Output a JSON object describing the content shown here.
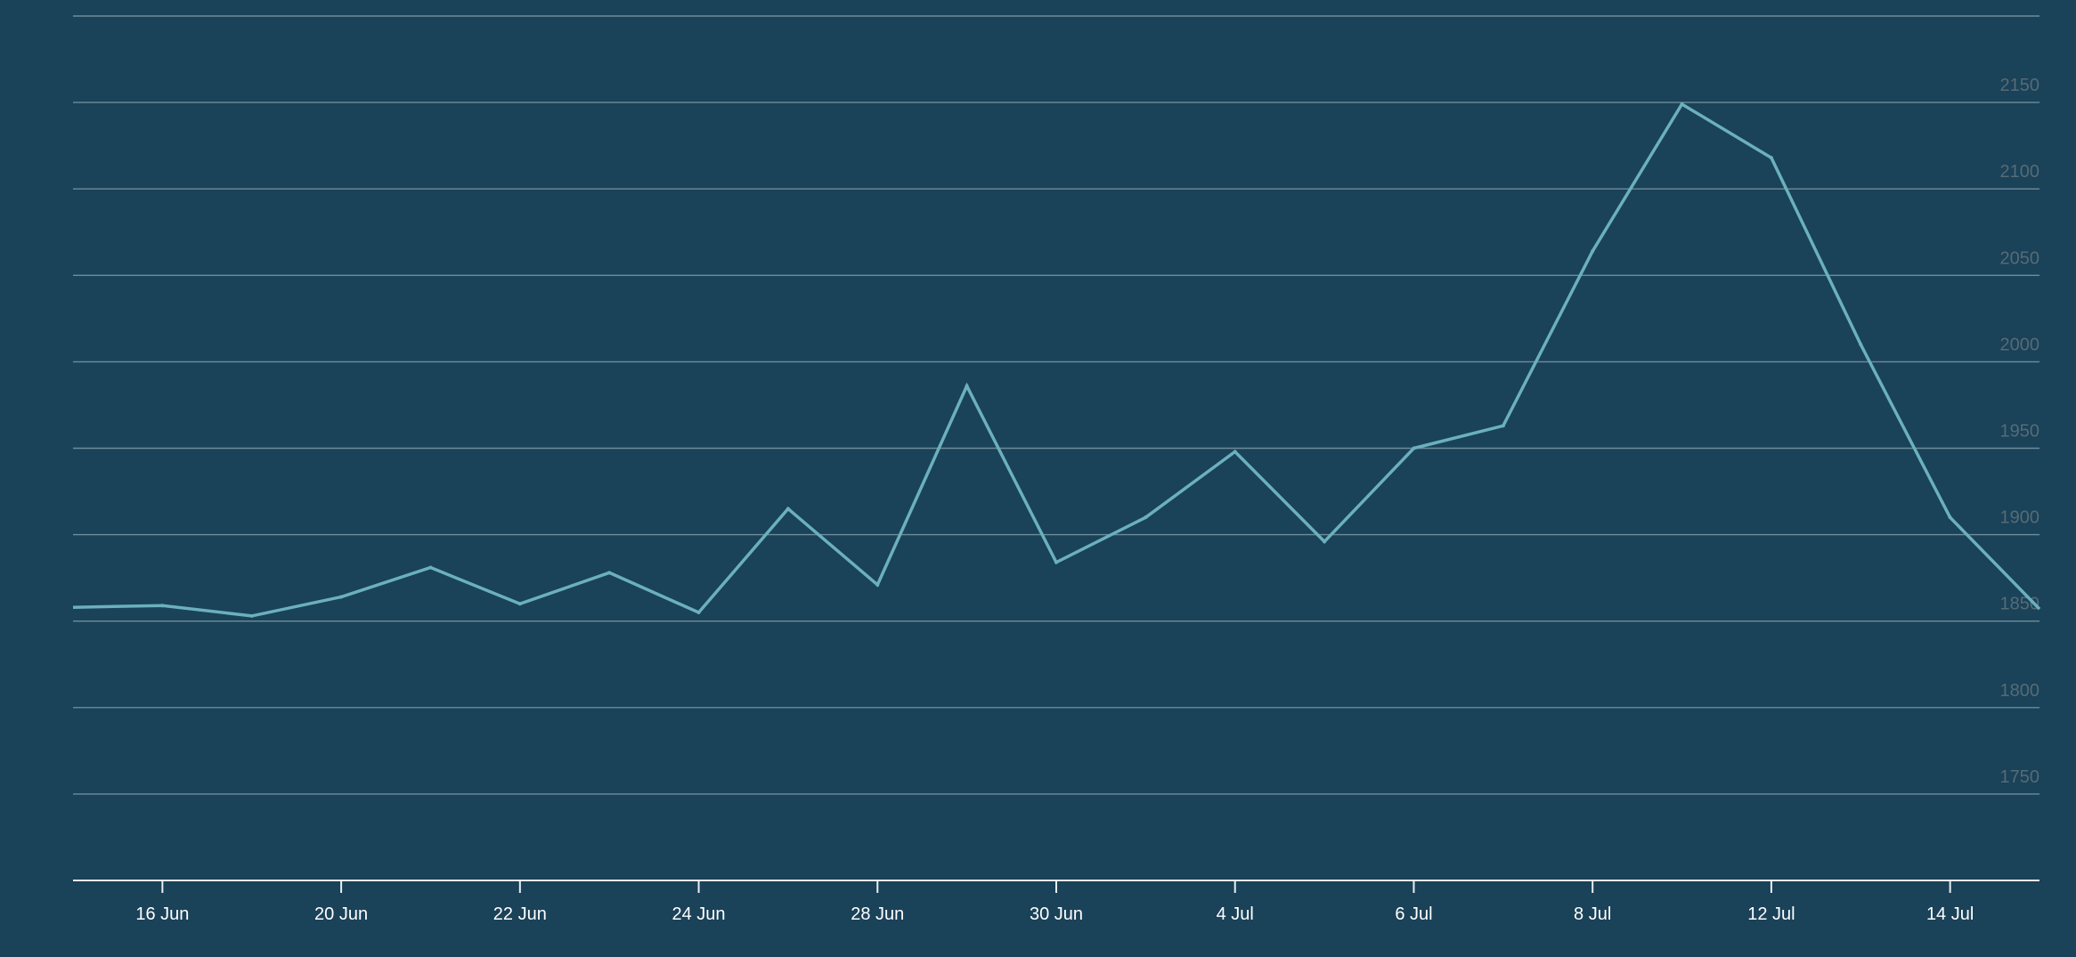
{
  "chart_data": {
    "type": "line",
    "title": "",
    "xlabel": "",
    "ylabel": "",
    "ylim": [
      1700,
      2200
    ],
    "yticks": [
      1750,
      1800,
      1850,
      1900,
      1950,
      2000,
      2050,
      2100,
      2150
    ],
    "grid": true,
    "legend": "none",
    "colors": {
      "background": "#1a4259",
      "line": "#6bb0bd",
      "grid": "#6e8c9c",
      "ytick": "#566b75",
      "xtick": "#ffffff"
    },
    "x": [
      "16 Jun",
      "18 Jun",
      "20 Jun",
      "21 Jun",
      "22 Jun",
      "23 Jun",
      "24 Jun",
      "25 Jun",
      "28 Jun",
      "29 Jun",
      "30 Jun",
      "1 Jul",
      "4 Jul",
      "5 Jul",
      "6 Jul",
      "7 Jul",
      "8 Jul",
      "9 Jul",
      "12 Jul",
      "13 Jul",
      "14 Jul"
    ],
    "x_range_edges": [
      "15 Jun",
      "15 Jul"
    ],
    "xtick_labels": [
      "16 Jun",
      "20 Jun",
      "22 Jun",
      "24 Jun",
      "28 Jun",
      "30 Jun",
      "4 Jul",
      "6 Jul",
      "8 Jul",
      "12 Jul",
      "14 Jul"
    ],
    "series": [
      {
        "values": [
          1859,
          1853,
          1864,
          1881,
          1860,
          1878,
          1855,
          1915,
          1871,
          1986,
          1884,
          1910,
          1948,
          1896,
          1950,
          1963,
          2064,
          2149,
          2118,
          2010,
          1910
        ],
        "edge_start": 1858,
        "edge_end": 1857
      }
    ]
  }
}
